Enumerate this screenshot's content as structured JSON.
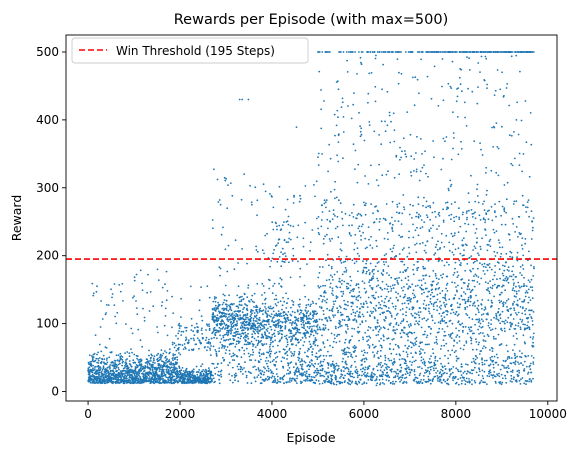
{
  "chart_data": {
    "type": "scatter",
    "title": "Rewards per Episode (with max=500)",
    "xlabel": "Episode",
    "ylabel": "Reward",
    "xlim": [
      -480,
      10200
    ],
    "ylim": [
      -14,
      525
    ],
    "xticks": [
      0,
      2000,
      4000,
      6000,
      8000,
      10000
    ],
    "yticks": [
      0,
      100,
      200,
      300,
      400,
      500
    ],
    "grid": false,
    "legend_position": "top-left",
    "point_color": "#1f77b4",
    "threshold": {
      "value": 195,
      "label": "Win Threshold (195 Steps)",
      "color": "#ff0000",
      "style": "dashed"
    },
    "episodes": 9700,
    "series_summary": [
      {
        "x_range": [
          0,
          2700
        ],
        "typical_reward": [
          10,
          60
        ],
        "outliers_up_to": 180
      },
      {
        "x_range": [
          2700,
          3700
        ],
        "typical_reward": [
          60,
          140
        ],
        "outliers_up_to": 430
      },
      {
        "x_range": [
          3700,
          5000
        ],
        "typical_reward": [
          10,
          140
        ],
        "cluster_center": 100,
        "outliers_up_to": 440
      },
      {
        "x_range": [
          5000,
          9700
        ],
        "typical_reward": [
          10,
          200
        ],
        "frequent_max": 500
      }
    ]
  }
}
